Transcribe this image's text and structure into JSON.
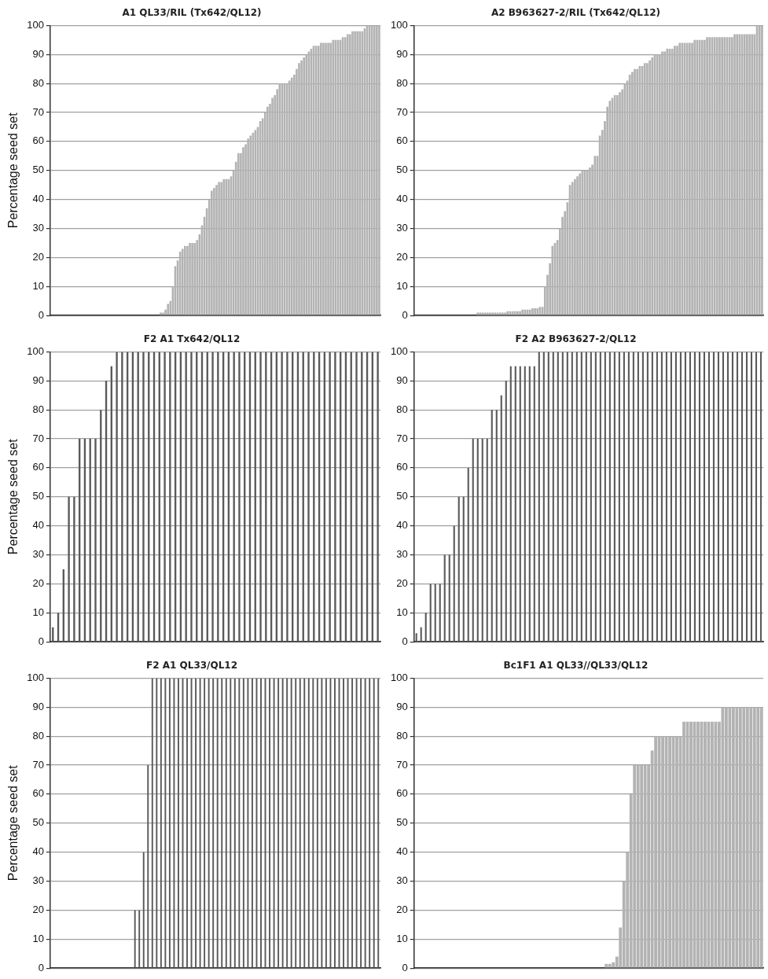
{
  "chart_data": [
    {
      "type": "bar",
      "title": "A1 QL33/RIL (Tx642/QL12)",
      "ylabel": "Percentage seed set",
      "color": "#b3b3b3",
      "ylim": [
        0,
        100
      ],
      "yticks": [
        0,
        10,
        20,
        30,
        40,
        50,
        60,
        70,
        80,
        90,
        100
      ],
      "grid": "y",
      "tick_labels": "y",
      "categories": [
        null,
        null,
        null,
        null,
        null,
        null,
        null,
        null,
        null,
        null,
        null,
        null,
        null,
        null,
        null,
        null,
        null,
        null,
        null,
        null,
        null,
        null,
        null,
        null,
        null,
        null,
        null,
        null,
        null,
        null,
        null,
        null,
        null,
        null,
        null,
        null,
        null,
        null,
        null,
        null,
        null,
        null,
        null,
        null,
        null,
        null,
        null,
        null,
        null,
        null,
        null,
        null,
        null,
        null,
        null,
        null,
        null,
        null,
        null,
        null,
        null,
        null,
        null,
        null,
        null,
        null,
        null,
        null,
        null,
        null,
        null,
        null,
        null,
        null,
        null,
        null,
        null,
        null,
        null,
        null,
        null,
        null,
        null,
        null,
        null,
        null,
        null,
        null,
        null,
        null,
        null,
        null,
        null,
        null,
        null,
        null,
        null,
        null,
        null,
        null,
        null,
        null,
        null,
        null,
        null,
        null,
        null,
        null,
        null,
        null,
        null,
        null,
        null,
        null,
        null,
        null,
        null,
        null,
        null,
        null,
        null,
        null,
        null,
        null,
        null,
        null,
        null,
        null,
        null,
        null,
        null,
        null,
        null,
        null,
        null,
        null
      ],
      "values": [
        0,
        0,
        0,
        0,
        0,
        0,
        0,
        0,
        0,
        0,
        0,
        0,
        0,
        0,
        0,
        0,
        0,
        0,
        0,
        0,
        0,
        0,
        0,
        0,
        0,
        0,
        0,
        0,
        0,
        0,
        0,
        0,
        0,
        0,
        0,
        0,
        0,
        0,
        0,
        0,
        0,
        0,
        0,
        0,
        0,
        1,
        1,
        2,
        4,
        5,
        10,
        17,
        19,
        22,
        23,
        24,
        24,
        25,
        25,
        25,
        26,
        28,
        31,
        34,
        37,
        40,
        43,
        44,
        45,
        46,
        46,
        47,
        47,
        47,
        48,
        50,
        53,
        56,
        56,
        58,
        59,
        61,
        62,
        63,
        64,
        65,
        67,
        68,
        70,
        72,
        73,
        75,
        76,
        78,
        80,
        80,
        80,
        80,
        81,
        82,
        83,
        85,
        87,
        88,
        89,
        90,
        91,
        92,
        93,
        93,
        93,
        94,
        94,
        94,
        94,
        94,
        95,
        95,
        95,
        95,
        96,
        96,
        97,
        97,
        98,
        98,
        98,
        98,
        98,
        99,
        100,
        100,
        100,
        100,
        100,
        100
      ]
    },
    {
      "type": "bar",
      "title": "A2 B963627-2/RIL (Tx642/QL12)",
      "color": "#b3b3b3",
      "ylim": [
        0,
        100
      ],
      "yticks": [
        0,
        10,
        20,
        30,
        40,
        50,
        60,
        70,
        80,
        90,
        100
      ],
      "grid": "y",
      "tick_labels": "y",
      "categories": [
        null,
        null,
        null,
        null,
        null,
        null,
        null,
        null,
        null,
        null,
        null,
        null,
        null,
        null,
        null,
        null,
        null,
        null,
        null,
        null,
        null,
        null,
        null,
        null,
        null,
        null,
        null,
        null,
        null,
        null,
        null,
        null,
        null,
        null,
        null,
        null,
        null,
        null,
        null,
        null,
        null,
        null,
        null,
        null,
        null,
        null,
        null,
        null,
        null,
        null,
        null,
        null,
        null,
        null,
        null,
        null,
        null,
        null,
        null,
        null,
        null,
        null,
        null,
        null,
        null,
        null,
        null,
        null,
        null,
        null,
        null,
        null,
        null,
        null,
        null,
        null,
        null,
        null,
        null,
        null,
        null,
        null,
        null,
        null,
        null,
        null,
        null,
        null,
        null,
        null,
        null,
        null,
        null,
        null,
        null,
        null,
        null,
        null,
        null,
        null,
        null,
        null,
        null,
        null,
        null,
        null,
        null,
        null,
        null,
        null,
        null,
        null,
        null,
        null,
        null,
        null,
        null,
        null,
        null,
        null,
        null,
        null,
        null,
        null,
        null,
        null,
        null,
        null,
        null,
        null,
        null,
        null,
        null,
        null,
        null,
        null,
        null,
        null,
        null,
        null
      ],
      "values": [
        0,
        0,
        0,
        0,
        0,
        0,
        0,
        0,
        0,
        0,
        0,
        0,
        0,
        0,
        0,
        0,
        0,
        0,
        0,
        0,
        0,
        0,
        0,
        0,
        0,
        1,
        1,
        1,
        1,
        1,
        1,
        1,
        1,
        1,
        1,
        1,
        1,
        1.5,
        1.5,
        1.5,
        1.5,
        1.5,
        1.5,
        2,
        2,
        2,
        2,
        2.5,
        2.5,
        2.5,
        3,
        3,
        10,
        14,
        18,
        24,
        25,
        26,
        30,
        34,
        36,
        39,
        45,
        46,
        47,
        48,
        49,
        50,
        50,
        50,
        51,
        52,
        55,
        55,
        62,
        64,
        67,
        72,
        74,
        75,
        76,
        76,
        77,
        78,
        80,
        81,
        83,
        84,
        85,
        85,
        86,
        86,
        87,
        87,
        88,
        89,
        90,
        90,
        90,
        91,
        91,
        92,
        92,
        92,
        93,
        93,
        94,
        94,
        94,
        94,
        94,
        94,
        95,
        95,
        95,
        95,
        95,
        96,
        96,
        96,
        96,
        96,
        96,
        96,
        96,
        96,
        96,
        96,
        97,
        97,
        97,
        97,
        97,
        97,
        97,
        97,
        97,
        100,
        100,
        100
      ]
    },
    {
      "type": "bar",
      "title": "F2 A1 Tx642/QL12",
      "ylabel": "Percentage seed set",
      "color": "#5a5a5a",
      "ylim": [
        0,
        100
      ],
      "yticks": [
        0,
        10,
        20,
        30,
        40,
        50,
        60,
        70,
        80,
        90,
        100
      ],
      "grid": "y",
      "tick_labels": "y",
      "categories": [
        null,
        null,
        null,
        null,
        null,
        null,
        null,
        null,
        null,
        null,
        null,
        null,
        null,
        null,
        null,
        null,
        null,
        null,
        null,
        null,
        null,
        null,
        null,
        null,
        null,
        null,
        null,
        null,
        null,
        null,
        null,
        null,
        null,
        null,
        null,
        null,
        null,
        null,
        null,
        null,
        null,
        null,
        null,
        null,
        null,
        null,
        null,
        null,
        null,
        null,
        null,
        null,
        null,
        null,
        null,
        null,
        null,
        null,
        null,
        null,
        null,
        null
      ],
      "values": [
        5,
        10,
        25,
        50,
        50,
        70,
        70,
        70,
        70,
        80,
        90,
        95,
        100,
        100,
        100,
        100,
        100,
        100,
        100,
        100,
        100,
        100,
        100,
        100,
        100,
        100,
        100,
        100,
        100,
        100,
        100,
        100,
        100,
        100,
        100,
        100,
        100,
        100,
        100,
        100,
        100,
        100,
        100,
        100,
        100,
        100,
        100,
        100,
        100,
        100,
        100,
        100,
        100,
        100,
        100,
        100,
        100,
        100,
        100,
        100,
        100,
        100
      ]
    },
    {
      "type": "bar",
      "title": "F2 A2 B963627-2/QL12",
      "color": "#5a5a5a",
      "ylim": [
        0,
        100
      ],
      "yticks": [
        0,
        10,
        20,
        30,
        40,
        50,
        60,
        70,
        80,
        90,
        100
      ],
      "grid": "y",
      "tick_labels": "y",
      "categories": [
        null,
        null,
        null,
        null,
        null,
        null,
        null,
        null,
        null,
        null,
        null,
        null,
        null,
        null,
        null,
        null,
        null,
        null,
        null,
        null,
        null,
        null,
        null,
        null,
        null,
        null,
        null,
        null,
        null,
        null,
        null,
        null,
        null,
        null,
        null,
        null,
        null,
        null,
        null,
        null,
        null,
        null,
        null,
        null,
        null,
        null,
        null,
        null,
        null,
        null,
        null,
        null,
        null,
        null,
        null,
        null,
        null,
        null,
        null,
        null,
        null,
        null,
        null,
        null,
        null,
        null,
        null,
        null,
        null,
        null,
        null,
        null,
        null,
        null
      ],
      "values": [
        3,
        5,
        10,
        20,
        20,
        20,
        30,
        30,
        40,
        50,
        50,
        60,
        70,
        70,
        70,
        70,
        80,
        80,
        85,
        90,
        95,
        95,
        95,
        95,
        95,
        95,
        100,
        100,
        100,
        100,
        100,
        100,
        100,
        100,
        100,
        100,
        100,
        100,
        100,
        100,
        100,
        100,
        100,
        100,
        100,
        100,
        100,
        100,
        100,
        100,
        100,
        100,
        100,
        100,
        100,
        100,
        100,
        100,
        100,
        100,
        100,
        100,
        100,
        100,
        100,
        100,
        100,
        100,
        100,
        100,
        100,
        100,
        100,
        100
      ]
    },
    {
      "type": "bar",
      "title": "F2 A1 QL33/QL12",
      "ylabel": "Percentage seed set",
      "color": "#5a5a5a",
      "ylim": [
        0,
        100
      ],
      "yticks": [
        0,
        10,
        20,
        30,
        40,
        50,
        60,
        70,
        80,
        90,
        100
      ],
      "grid": "y",
      "tick_labels": "y",
      "categories": [
        null,
        null,
        null,
        null,
        null,
        null,
        null,
        null,
        null,
        null,
        null,
        null,
        null,
        null,
        null,
        null,
        null,
        null,
        null,
        null,
        null,
        null,
        null,
        null,
        null,
        null,
        null,
        null,
        null,
        null,
        null,
        null,
        null,
        null,
        null,
        null,
        null,
        null,
        null,
        null,
        null,
        null,
        null,
        null,
        null,
        null,
        null,
        null,
        null,
        null,
        null,
        null,
        null,
        null,
        null,
        null,
        null,
        null,
        null,
        null,
        null,
        null,
        null,
        null,
        null,
        null,
        null,
        null,
        null,
        null,
        null,
        null,
        null,
        null,
        null,
        null
      ],
      "values": [
        0,
        0,
        0,
        0,
        0,
        0,
        0,
        0,
        0,
        0,
        0,
        0,
        0,
        0,
        0,
        0,
        0,
        0,
        0,
        20,
        20,
        40,
        70,
        100,
        100,
        100,
        100,
        100,
        100,
        100,
        100,
        100,
        100,
        100,
        100,
        100,
        100,
        100,
        100,
        100,
        100,
        100,
        100,
        100,
        100,
        100,
        100,
        100,
        100,
        100,
        100,
        100,
        100,
        100,
        100,
        100,
        100,
        100,
        100,
        100,
        100,
        100,
        100,
        100,
        100,
        100,
        100,
        100,
        100,
        100,
        100,
        100,
        100,
        100,
        100,
        100
      ]
    },
    {
      "type": "bar",
      "title": "Bc1F1 A1 QL33//QL33/QL12",
      "color": "#b3b3b3",
      "ylim": [
        0,
        100
      ],
      "yticks": [
        0,
        10,
        20,
        30,
        40,
        50,
        60,
        70,
        80,
        90,
        100
      ],
      "grid": "y",
      "tick_labels": "y",
      "categories": [
        null,
        null,
        null,
        null,
        null,
        null,
        null,
        null,
        null,
        null,
        null,
        null,
        null,
        null,
        null,
        null,
        null,
        null,
        null,
        null,
        null,
        null,
        null,
        null,
        null,
        null,
        null,
        null,
        null,
        null,
        null,
        null,
        null,
        null,
        null,
        null,
        null,
        null,
        null,
        null,
        null,
        null,
        null,
        null,
        null,
        null,
        null,
        null,
        null,
        null,
        null,
        null,
        null,
        null,
        null,
        null,
        null,
        null,
        null,
        null,
        null,
        null,
        null,
        null,
        null,
        null,
        null,
        null,
        null,
        null,
        null,
        null,
        null,
        null,
        null,
        null,
        null,
        null,
        null,
        null,
        null,
        null,
        null,
        null,
        null,
        null,
        null,
        null,
        null,
        null,
        null,
        null,
        null,
        null,
        null,
        null,
        null,
        null,
        null
      ],
      "values": [
        0,
        0,
        0,
        0,
        0,
        0,
        0,
        0,
        0,
        0,
        0,
        0,
        0,
        0,
        0,
        0,
        0,
        0,
        0,
        0,
        0,
        0,
        0,
        0,
        0,
        0,
        0,
        0,
        0,
        0,
        0,
        0,
        0,
        0,
        0,
        0,
        0,
        0,
        0,
        0,
        0,
        0,
        0,
        0,
        0,
        0,
        0,
        0,
        0,
        0,
        0,
        0,
        0,
        0,
        1.5,
        1.5,
        2,
        4,
        14,
        30,
        40,
        60,
        70,
        70,
        70,
        70,
        70,
        75,
        80,
        80,
        80,
        80,
        80,
        80,
        80,
        80,
        85,
        85,
        85,
        85,
        85,
        85,
        85,
        85,
        85,
        85,
        85,
        90,
        90,
        90,
        90,
        90,
        90,
        90,
        90,
        90,
        90,
        90,
        90
      ]
    }
  ]
}
